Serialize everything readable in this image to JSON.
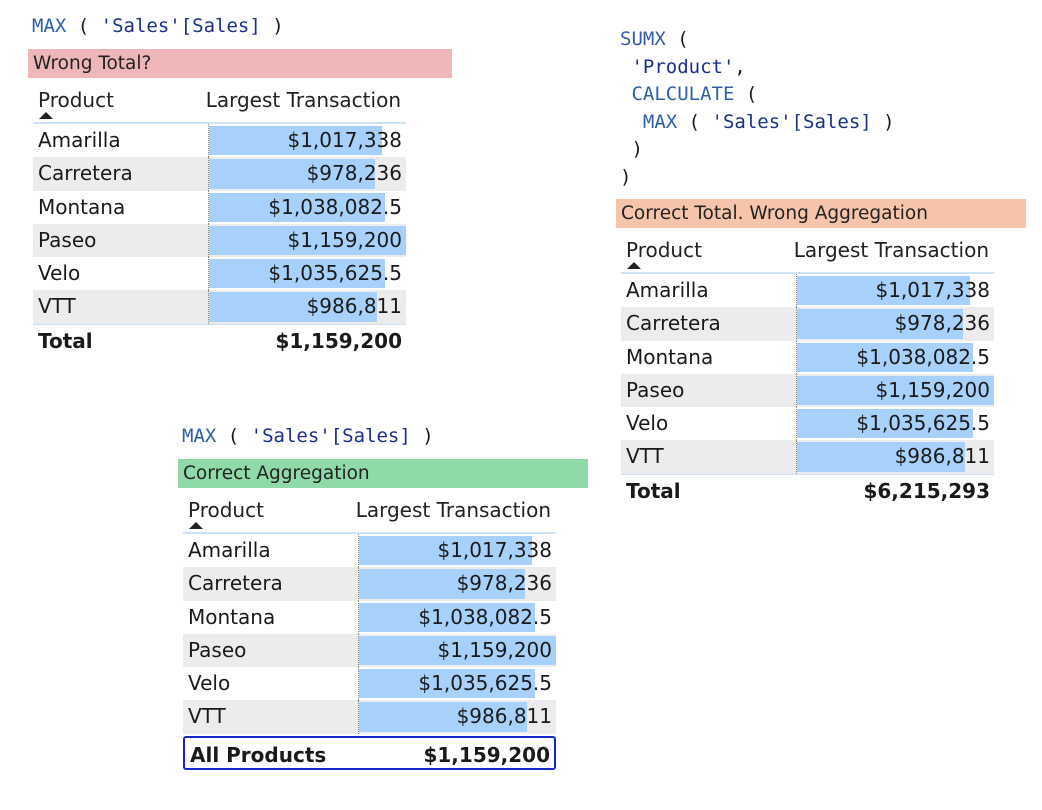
{
  "panels": [
    {
      "code": [
        "MAX ( 'Sales'[Sales] )"
      ],
      "banner": {
        "label": "Wrong Total?",
        "color": "#efb6ba"
      },
      "table": {
        "columns": [
          "Product",
          "Largest Transaction"
        ],
        "rows": [
          {
            "product": "Amarilla",
            "value": "$1,017,338",
            "num": 1017338
          },
          {
            "product": "Carretera",
            "value": "$978,236",
            "num": 978236
          },
          {
            "product": "Montana",
            "value": "$1,038,082.5",
            "num": 1038082.5
          },
          {
            "product": "Paseo",
            "value": "$1,159,200",
            "num": 1159200
          },
          {
            "product": "Velo",
            "value": "$1,035,625.5",
            "num": 1035625.5
          },
          {
            "product": "VTT",
            "value": "$986,811",
            "num": 986811
          }
        ],
        "total": {
          "label": "Total",
          "value": "$1,159,200"
        }
      }
    },
    {
      "code": [
        "SUMX (",
        " 'Product',",
        " CALCULATE (",
        "  MAX ( 'Sales'[Sales] )",
        " )",
        ")"
      ],
      "banner": {
        "label": "Correct Total. Wrong Aggregation",
        "color": "#f5c4aa"
      },
      "table": {
        "columns": [
          "Product",
          "Largest Transaction"
        ],
        "rows": [
          {
            "product": "Amarilla",
            "value": "$1,017,338",
            "num": 1017338
          },
          {
            "product": "Carretera",
            "value": "$978,236",
            "num": 978236
          },
          {
            "product": "Montana",
            "value": "$1,038,082.5",
            "num": 1038082.5
          },
          {
            "product": "Paseo",
            "value": "$1,159,200",
            "num": 1159200
          },
          {
            "product": "Velo",
            "value": "$1,035,625.5",
            "num": 1035625.5
          },
          {
            "product": "VTT",
            "value": "$986,811",
            "num": 986811
          }
        ],
        "total": {
          "label": "Total",
          "value": "$6,215,293"
        }
      }
    },
    {
      "code": [
        "MAX ( 'Sales'[Sales] )"
      ],
      "banner": {
        "label": "Correct Aggregation",
        "color": "#8fdaa8"
      },
      "table": {
        "columns": [
          "Product",
          "Largest Transaction"
        ],
        "rows": [
          {
            "product": "Amarilla",
            "value": "$1,017,338",
            "num": 1017338
          },
          {
            "product": "Carretera",
            "value": "$978,236",
            "num": 978236
          },
          {
            "product": "Montana",
            "value": "$1,038,082.5",
            "num": 1038082.5
          },
          {
            "product": "Paseo",
            "value": "$1,159,200",
            "num": 1159200
          },
          {
            "product": "Velo",
            "value": "$1,035,625.5",
            "num": 1035625.5
          },
          {
            "product": "VTT",
            "value": "$986,811",
            "num": 986811
          }
        ],
        "total": {
          "label": "All Products",
          "value": "$1,159,200"
        }
      }
    }
  ]
}
